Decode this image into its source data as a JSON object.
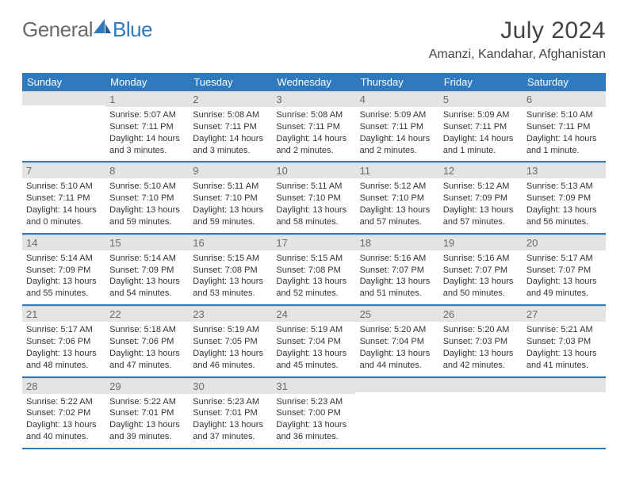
{
  "brand": {
    "general": "General",
    "blue": "Blue"
  },
  "title": "July 2024",
  "location": "Amanzi, Kandahar, Afghanistan",
  "colors": {
    "header_bg": "#2f7abf",
    "header_fg": "#ffffff",
    "daynum_bg": "#e4e4e4",
    "daynum_fg": "#6a6a6a",
    "rule": "#2f7abf"
  },
  "day_headers": [
    "Sunday",
    "Monday",
    "Tuesday",
    "Wednesday",
    "Thursday",
    "Friday",
    "Saturday"
  ],
  "weeks": [
    [
      {
        "n": "",
        "sr": "",
        "ss": "",
        "dl": ""
      },
      {
        "n": "1",
        "sr": "Sunrise: 5:07 AM",
        "ss": "Sunset: 7:11 PM",
        "dl": "Daylight: 14 hours and 3 minutes."
      },
      {
        "n": "2",
        "sr": "Sunrise: 5:08 AM",
        "ss": "Sunset: 7:11 PM",
        "dl": "Daylight: 14 hours and 3 minutes."
      },
      {
        "n": "3",
        "sr": "Sunrise: 5:08 AM",
        "ss": "Sunset: 7:11 PM",
        "dl": "Daylight: 14 hours and 2 minutes."
      },
      {
        "n": "4",
        "sr": "Sunrise: 5:09 AM",
        "ss": "Sunset: 7:11 PM",
        "dl": "Daylight: 14 hours and 2 minutes."
      },
      {
        "n": "5",
        "sr": "Sunrise: 5:09 AM",
        "ss": "Sunset: 7:11 PM",
        "dl": "Daylight: 14 hours and 1 minute."
      },
      {
        "n": "6",
        "sr": "Sunrise: 5:10 AM",
        "ss": "Sunset: 7:11 PM",
        "dl": "Daylight: 14 hours and 1 minute."
      }
    ],
    [
      {
        "n": "7",
        "sr": "Sunrise: 5:10 AM",
        "ss": "Sunset: 7:11 PM",
        "dl": "Daylight: 14 hours and 0 minutes."
      },
      {
        "n": "8",
        "sr": "Sunrise: 5:10 AM",
        "ss": "Sunset: 7:10 PM",
        "dl": "Daylight: 13 hours and 59 minutes."
      },
      {
        "n": "9",
        "sr": "Sunrise: 5:11 AM",
        "ss": "Sunset: 7:10 PM",
        "dl": "Daylight: 13 hours and 59 minutes."
      },
      {
        "n": "10",
        "sr": "Sunrise: 5:11 AM",
        "ss": "Sunset: 7:10 PM",
        "dl": "Daylight: 13 hours and 58 minutes."
      },
      {
        "n": "11",
        "sr": "Sunrise: 5:12 AM",
        "ss": "Sunset: 7:10 PM",
        "dl": "Daylight: 13 hours and 57 minutes."
      },
      {
        "n": "12",
        "sr": "Sunrise: 5:12 AM",
        "ss": "Sunset: 7:09 PM",
        "dl": "Daylight: 13 hours and 57 minutes."
      },
      {
        "n": "13",
        "sr": "Sunrise: 5:13 AM",
        "ss": "Sunset: 7:09 PM",
        "dl": "Daylight: 13 hours and 56 minutes."
      }
    ],
    [
      {
        "n": "14",
        "sr": "Sunrise: 5:14 AM",
        "ss": "Sunset: 7:09 PM",
        "dl": "Daylight: 13 hours and 55 minutes."
      },
      {
        "n": "15",
        "sr": "Sunrise: 5:14 AM",
        "ss": "Sunset: 7:09 PM",
        "dl": "Daylight: 13 hours and 54 minutes."
      },
      {
        "n": "16",
        "sr": "Sunrise: 5:15 AM",
        "ss": "Sunset: 7:08 PM",
        "dl": "Daylight: 13 hours and 53 minutes."
      },
      {
        "n": "17",
        "sr": "Sunrise: 5:15 AM",
        "ss": "Sunset: 7:08 PM",
        "dl": "Daylight: 13 hours and 52 minutes."
      },
      {
        "n": "18",
        "sr": "Sunrise: 5:16 AM",
        "ss": "Sunset: 7:07 PM",
        "dl": "Daylight: 13 hours and 51 minutes."
      },
      {
        "n": "19",
        "sr": "Sunrise: 5:16 AM",
        "ss": "Sunset: 7:07 PM",
        "dl": "Daylight: 13 hours and 50 minutes."
      },
      {
        "n": "20",
        "sr": "Sunrise: 5:17 AM",
        "ss": "Sunset: 7:07 PM",
        "dl": "Daylight: 13 hours and 49 minutes."
      }
    ],
    [
      {
        "n": "21",
        "sr": "Sunrise: 5:17 AM",
        "ss": "Sunset: 7:06 PM",
        "dl": "Daylight: 13 hours and 48 minutes."
      },
      {
        "n": "22",
        "sr": "Sunrise: 5:18 AM",
        "ss": "Sunset: 7:06 PM",
        "dl": "Daylight: 13 hours and 47 minutes."
      },
      {
        "n": "23",
        "sr": "Sunrise: 5:19 AM",
        "ss": "Sunset: 7:05 PM",
        "dl": "Daylight: 13 hours and 46 minutes."
      },
      {
        "n": "24",
        "sr": "Sunrise: 5:19 AM",
        "ss": "Sunset: 7:04 PM",
        "dl": "Daylight: 13 hours and 45 minutes."
      },
      {
        "n": "25",
        "sr": "Sunrise: 5:20 AM",
        "ss": "Sunset: 7:04 PM",
        "dl": "Daylight: 13 hours and 44 minutes."
      },
      {
        "n": "26",
        "sr": "Sunrise: 5:20 AM",
        "ss": "Sunset: 7:03 PM",
        "dl": "Daylight: 13 hours and 42 minutes."
      },
      {
        "n": "27",
        "sr": "Sunrise: 5:21 AM",
        "ss": "Sunset: 7:03 PM",
        "dl": "Daylight: 13 hours and 41 minutes."
      }
    ],
    [
      {
        "n": "28",
        "sr": "Sunrise: 5:22 AM",
        "ss": "Sunset: 7:02 PM",
        "dl": "Daylight: 13 hours and 40 minutes."
      },
      {
        "n": "29",
        "sr": "Sunrise: 5:22 AM",
        "ss": "Sunset: 7:01 PM",
        "dl": "Daylight: 13 hours and 39 minutes."
      },
      {
        "n": "30",
        "sr": "Sunrise: 5:23 AM",
        "ss": "Sunset: 7:01 PM",
        "dl": "Daylight: 13 hours and 37 minutes."
      },
      {
        "n": "31",
        "sr": "Sunrise: 5:23 AM",
        "ss": "Sunset: 7:00 PM",
        "dl": "Daylight: 13 hours and 36 minutes."
      },
      {
        "n": "",
        "sr": "",
        "ss": "",
        "dl": ""
      },
      {
        "n": "",
        "sr": "",
        "ss": "",
        "dl": ""
      },
      {
        "n": "",
        "sr": "",
        "ss": "",
        "dl": ""
      }
    ]
  ]
}
